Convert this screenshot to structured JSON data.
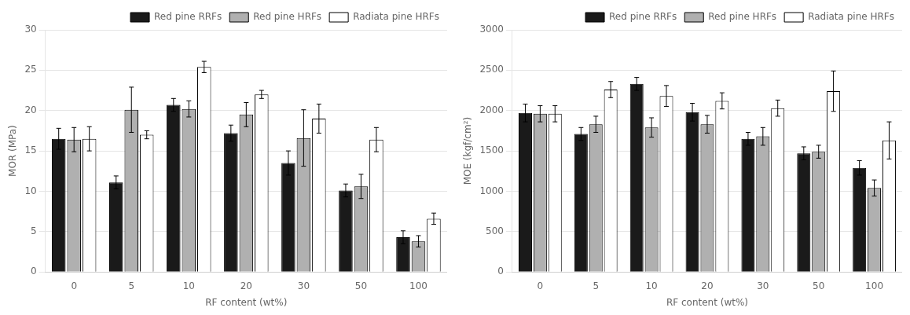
{
  "chart_data": [
    {
      "type": "bar",
      "categories": [
        0,
        5,
        10,
        20,
        30,
        50,
        100
      ],
      "xlabel": "RF content (wt%)",
      "ylabel": "MOR (MPa)",
      "series": [
        {
          "name": "Red pine RRFs",
          "color": "#1a1a1a",
          "values": [
            16.5,
            11.1,
            20.7,
            17.2,
            13.5,
            10.1,
            4.3
          ],
          "errors": [
            1.3,
            0.8,
            0.8,
            1.0,
            1.5,
            0.8,
            0.8
          ]
        },
        {
          "name": "Red pine HRFs",
          "color": "#b0b0b0",
          "values": [
            16.4,
            20.1,
            20.2,
            19.5,
            16.6,
            10.6,
            3.8
          ],
          "errors": [
            1.5,
            2.8,
            1.0,
            1.5,
            3.5,
            1.5,
            0.7
          ]
        },
        {
          "name": "Radiata pine HRFs",
          "color": "#ffffff",
          "values": [
            16.5,
            17.0,
            25.4,
            22.0,
            19.0,
            16.4,
            6.6
          ],
          "errors": [
            1.5,
            0.5,
            0.7,
            0.5,
            1.8,
            1.5,
            0.7
          ]
        }
      ],
      "ylim": [
        0,
        30
      ],
      "yticks": [
        0,
        5,
        10,
        15,
        20,
        25,
        30
      ],
      "grid": true,
      "legend": "upper right"
    },
    {
      "type": "bar",
      "categories": [
        0,
        5,
        10,
        20,
        30,
        50,
        100
      ],
      "xlabel": "RF content (wt%)",
      "ylabel": "MOE (kgf/cm²)",
      "series": [
        {
          "name": "Red pine RRFs",
          "color": "#1a1a1a",
          "values": [
            1970,
            1710,
            2330,
            1980,
            1650,
            1470,
            1290
          ],
          "errors": [
            110,
            80,
            80,
            110,
            80,
            80,
            90
          ]
        },
        {
          "name": "Red pine HRFs",
          "color": "#b0b0b0",
          "values": [
            1960,
            1830,
            1790,
            1830,
            1680,
            1490,
            1040
          ],
          "errors": [
            100,
            100,
            120,
            110,
            110,
            80,
            100
          ]
        },
        {
          "name": "Radiata pine HRFs",
          "color": "#ffffff",
          "values": [
            1960,
            2260,
            2180,
            2120,
            2030,
            2240,
            1630
          ],
          "errors": [
            100,
            100,
            130,
            100,
            100,
            250,
            230
          ]
        }
      ],
      "ylim": [
        0,
        3000
      ],
      "yticks": [
        0,
        500,
        1000,
        1500,
        2000,
        2500,
        3000
      ],
      "grid": true,
      "legend": "upper right"
    }
  ]
}
